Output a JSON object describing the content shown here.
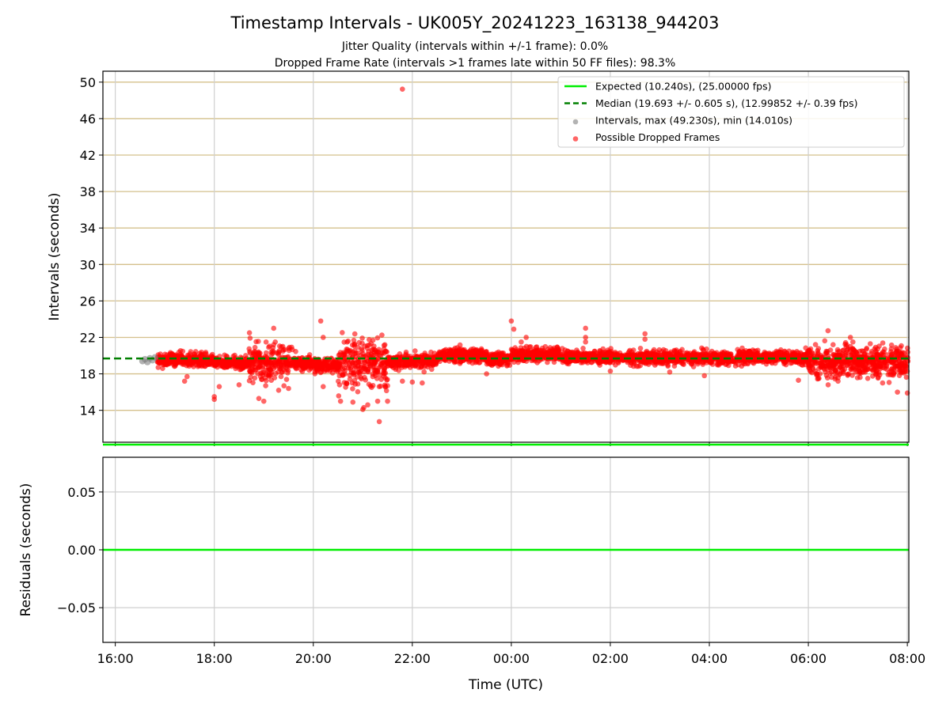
{
  "chart_data": [
    {
      "type": "scatter",
      "panel": "top",
      "title": "Timestamp Intervals - UK005Y_20241223_163138_944203",
      "subtitle_lines": [
        "Jitter Quality (intervals within +/-1 frame): 0.0%",
        "Dropped Frame Rate (intervals >1 frames late within 50 FF files): 98.3%"
      ],
      "ylabel": "Intervals (seconds)",
      "xlabel": "",
      "x_axis_type": "time",
      "x_range_hours": [
        15.75,
        32.03
      ],
      "ylim": [
        10.5,
        51.2
      ],
      "y_ticks": [
        14,
        18,
        22,
        26,
        30,
        34,
        38,
        42,
        46,
        50
      ],
      "x_ticks": [
        16,
        18,
        20,
        22,
        24,
        26,
        28,
        30,
        32
      ],
      "x_tick_labels": [
        "16:00",
        "18:00",
        "20:00",
        "22:00",
        "00:00",
        "02:00",
        "04:00",
        "06:00",
        "08:00"
      ],
      "grid": true,
      "legend_position": "top-right",
      "expected_interval": 10.24,
      "median_interval": 19.693,
      "legend": [
        {
          "label": "Expected (10.240s), (25.00000 fps)",
          "style": "solid-line",
          "color": "#00ee00"
        },
        {
          "label": "Median (19.693 +/- 0.605 s), (12.99852 +/- 0.39 fps)",
          "style": "dashed-line",
          "color": "#008000"
        },
        {
          "label": "Intervals, max (49.230s), min (14.010s)",
          "style": "marker",
          "color": "#808080"
        },
        {
          "label": "Possible Dropped Frames",
          "style": "marker",
          "color": "#ff0000"
        }
      ],
      "series": [
        {
          "name": "Intervals, max (49.230s), min (14.010s)",
          "color": "#808080",
          "points": [
            [
              16.55,
              19.4
            ],
            [
              16.6,
              19.6
            ],
            [
              16.65,
              19.3
            ],
            [
              16.7,
              19.7
            ],
            [
              16.75,
              19.5
            ],
            [
              16.8,
              19.8
            ]
          ]
        },
        {
          "name": "Possible Dropped Frames",
          "color": "#ff0000",
          "outliers": [
            [
              21.8,
              49.23
            ],
            [
              19.2,
              23.0
            ],
            [
              19.2,
              21.2
            ],
            [
              20.15,
              23.8
            ],
            [
              20.2,
              22.0
            ],
            [
              24.0,
              23.8
            ],
            [
              24.05,
              22.9
            ],
            [
              24.3,
              22.0
            ],
            [
              24.2,
              21.5
            ],
            [
              25.5,
              23.0
            ],
            [
              25.5,
              22.0
            ],
            [
              25.5,
              21.5
            ],
            [
              25.45,
              20.8
            ],
            [
              26.7,
              22.4
            ],
            [
              26.7,
              21.8
            ],
            [
              30.85,
              22.0
            ],
            [
              30.9,
              21.5
            ],
            [
              30.85,
              21.0
            ],
            [
              30.5,
              21.2
            ],
            [
              32.0,
              15.9
            ],
            [
              18.0,
              15.2
            ],
            [
              18.0,
              15.5
            ],
            [
              18.1,
              16.6
            ],
            [
              18.5,
              16.8
            ],
            [
              18.9,
              15.3
            ],
            [
              19.0,
              15.0
            ],
            [
              19.3,
              16.2
            ],
            [
              19.5,
              16.4
            ],
            [
              20.2,
              16.6
            ],
            [
              20.55,
              15.0
            ],
            [
              20.8,
              14.9
            ],
            [
              21.0,
              14.1
            ],
            [
              21.02,
              14.3
            ],
            [
              21.1,
              14.6
            ],
            [
              21.3,
              15.0
            ],
            [
              21.5,
              16.7
            ],
            [
              21.5,
              15.0
            ],
            [
              21.8,
              17.2
            ],
            [
              22.0,
              17.1
            ],
            [
              22.2,
              17.0
            ],
            [
              17.4,
              17.2
            ],
            [
              17.45,
              17.7
            ],
            [
              23.5,
              18.0
            ],
            [
              26.0,
              18.3
            ],
            [
              27.2,
              18.2
            ],
            [
              27.9,
              17.8
            ],
            [
              29.8,
              17.3
            ],
            [
              30.2,
              17.5
            ],
            [
              30.6,
              17.2
            ],
            [
              30.4,
              16.8
            ],
            [
              31.2,
              17.5
            ],
            [
              31.5,
              17.0
            ],
            [
              31.8,
              16.0
            ]
          ]
        }
      ]
    },
    {
      "type": "line",
      "panel": "bottom",
      "title": "",
      "ylabel": "Residuals (seconds)",
      "xlabel": "Time (UTC)",
      "x_axis_type": "time",
      "x_range_hours": [
        15.75,
        32.03
      ],
      "ylim": [
        -0.08,
        0.08
      ],
      "y_ticks": [
        -0.05,
        0.0,
        0.05
      ],
      "y_tick_labels": [
        "−0.05",
        "0.00",
        "0.05"
      ],
      "x_ticks": [
        16,
        18,
        20,
        22,
        24,
        26,
        28,
        30,
        32
      ],
      "x_tick_labels": [
        "16:00",
        "18:00",
        "20:00",
        "22:00",
        "00:00",
        "02:00",
        "04:00",
        "06:00",
        "08:00"
      ],
      "grid": true,
      "series": [
        {
          "color": "#00ee00",
          "values": [
            0.0
          ]
        }
      ]
    }
  ]
}
